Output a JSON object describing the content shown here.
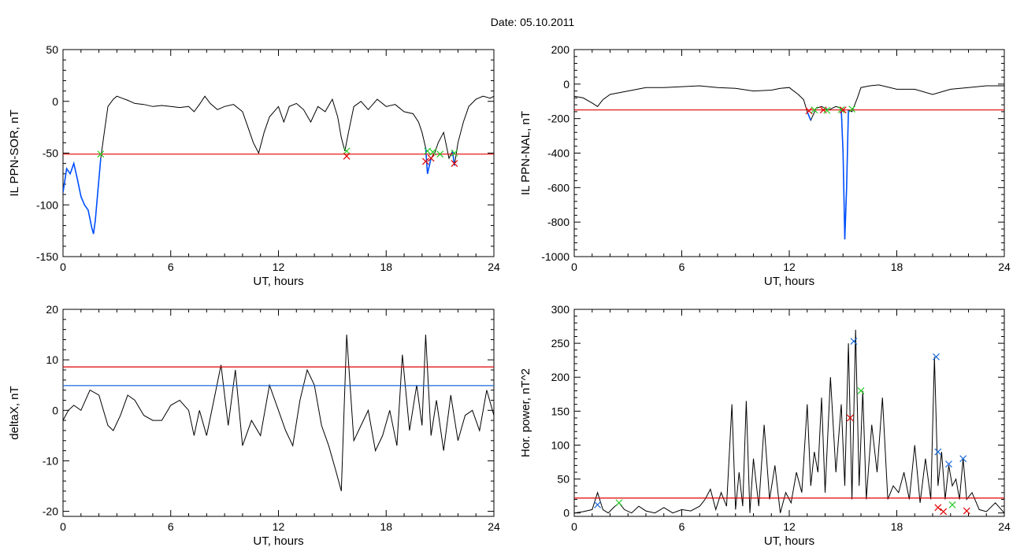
{
  "figure_title": "Date:  05.10.2011",
  "colors": {
    "line": "#000000",
    "threshold": "#e00000",
    "level": "#1a6ad9",
    "highlight": "#0050ff",
    "start_marker": "#22cc22",
    "end_marker": "#e00000",
    "peak_marker": "#1a6ad9"
  },
  "chart_data": [
    {
      "type": "line",
      "ylabel": "IL PPN-SOR, nT",
      "xlabel": "UT, hours",
      "xlim": [
        0,
        24
      ],
      "ylim": [
        -150,
        50
      ],
      "x_ticks": [
        0,
        6,
        12,
        18,
        24
      ],
      "y_ticks": [
        -150,
        -100,
        -50,
        0,
        50
      ],
      "threshold": -51,
      "series": [
        {
          "x": [
            0,
            0.2,
            0.4,
            0.6,
            0.8,
            1.0,
            1.2,
            1.4,
            1.6,
            1.7,
            1.8,
            1.9,
            2.1,
            2.3,
            2.5,
            2.8,
            3.0,
            3.3,
            3.6,
            4.0,
            4.5,
            5.0,
            5.5,
            6.0,
            6.5,
            7.0,
            7.3,
            7.6,
            7.9,
            8.2,
            8.6,
            9.0,
            9.5,
            10.0,
            10.3,
            10.6,
            10.9,
            11.2,
            11.5,
            12.0,
            12.3,
            12.6,
            13.0,
            13.4,
            13.8,
            14.2,
            14.6,
            15.0,
            15.3,
            15.5,
            15.7,
            15.9,
            16.2,
            16.6,
            17.0,
            17.5,
            18.0,
            18.5,
            19.0,
            19.5,
            19.8,
            20.0,
            20.2,
            20.3,
            20.5,
            20.7,
            20.9,
            21.2,
            21.5,
            21.7,
            21.8,
            22.0,
            22.3,
            22.6,
            23.0,
            23.4,
            23.8,
            24.0
          ],
          "y": [
            -88,
            -65,
            -70,
            -60,
            -75,
            -92,
            -100,
            -105,
            -122,
            -128,
            -115,
            -95,
            -55,
            -30,
            -5,
            2,
            5,
            3,
            1,
            -2,
            -3,
            -5,
            -4,
            -5,
            -6,
            -5,
            -10,
            -3,
            5,
            -2,
            -8,
            -5,
            -3,
            -10,
            -25,
            -40,
            -50,
            -30,
            -15,
            -5,
            -20,
            -5,
            -2,
            -8,
            -20,
            -5,
            -10,
            2,
            -15,
            -35,
            -48,
            -30,
            -5,
            0,
            -8,
            2,
            -5,
            -3,
            -10,
            -12,
            -20,
            -30,
            -45,
            -70,
            -55,
            -50,
            -40,
            -30,
            -55,
            -48,
            -62,
            -40,
            -20,
            -5,
            2,
            5,
            3,
            5
          ]
        }
      ],
      "highlight_segments": [
        [
          0,
          2.1
        ],
        [
          20.2,
          20.5
        ],
        [
          21.7,
          21.9
        ]
      ],
      "markers": [
        {
          "x": 2.1,
          "y": -51,
          "kind": "start"
        },
        {
          "x": 15.8,
          "y": -48,
          "kind": "start"
        },
        {
          "x": 15.8,
          "y": -53,
          "kind": "end"
        },
        {
          "x": 20.3,
          "y": -48,
          "kind": "start"
        },
        {
          "x": 20.6,
          "y": -49,
          "kind": "start"
        },
        {
          "x": 20.2,
          "y": -58,
          "kind": "end"
        },
        {
          "x": 20.5,
          "y": -55,
          "kind": "end"
        },
        {
          "x": 21.0,
          "y": -51,
          "kind": "start"
        },
        {
          "x": 21.8,
          "y": -50,
          "kind": "start"
        },
        {
          "x": 21.8,
          "y": -60,
          "kind": "end"
        }
      ]
    },
    {
      "type": "line",
      "ylabel": "IL PPN-NAL, nT",
      "xlabel": "UT, hours",
      "xlim": [
        0,
        24
      ],
      "ylim": [
        -1000,
        200
      ],
      "x_ticks": [
        0,
        6,
        12,
        18,
        24
      ],
      "y_ticks": [
        -1000,
        -800,
        -600,
        -400,
        -200,
        0,
        200
      ],
      "threshold": -150,
      "series": [
        {
          "x": [
            0,
            0.5,
            1.0,
            1.3,
            1.6,
            2.0,
            3.0,
            4.0,
            5.0,
            6.0,
            7.0,
            8.0,
            9.0,
            10.0,
            11.0,
            11.5,
            12.0,
            12.5,
            12.8,
            13.0,
            13.2,
            13.5,
            13.8,
            14.2,
            14.6,
            14.9,
            15.0,
            15.1,
            15.2,
            15.3,
            15.5,
            15.8,
            16.0,
            16.5,
            17.0,
            18.0,
            19.0,
            20.0,
            21.0,
            22.0,
            23.0,
            24.0
          ],
          "y": [
            -70,
            -80,
            -110,
            -130,
            -90,
            -60,
            -40,
            -20,
            -20,
            -15,
            -10,
            -20,
            -25,
            -40,
            -35,
            -25,
            -20,
            -60,
            -90,
            -160,
            -210,
            -140,
            -130,
            -150,
            -130,
            -140,
            -400,
            -900,
            -600,
            -150,
            -160,
            -80,
            -20,
            -10,
            -5,
            -30,
            -30,
            -60,
            -30,
            -20,
            -10,
            -10
          ]
        }
      ],
      "highlight_segments": [
        [
          13.0,
          13.3
        ],
        [
          14.8,
          15.4
        ]
      ],
      "markers": [
        {
          "x": 13.1,
          "y": -155,
          "kind": "end"
        },
        {
          "x": 13.4,
          "y": -150,
          "kind": "start"
        },
        {
          "x": 13.9,
          "y": -150,
          "kind": "end"
        },
        {
          "x": 14.1,
          "y": -152,
          "kind": "start"
        },
        {
          "x": 14.9,
          "y": -148,
          "kind": "start"
        },
        {
          "x": 15.5,
          "y": -145,
          "kind": "start"
        },
        {
          "x": 15.0,
          "y": -150,
          "kind": "end"
        }
      ]
    },
    {
      "type": "line",
      "ylabel": "deltaX, nT",
      "xlabel": "UT, hours",
      "xlim": [
        0,
        24
      ],
      "ylim": [
        -21,
        20
      ],
      "x_ticks": [
        0,
        6,
        12,
        18,
        24
      ],
      "y_ticks": [
        -20,
        -10,
        0,
        10,
        20
      ],
      "threshold": 8.6,
      "level": 4.9,
      "series": [
        {
          "x": [
            0,
            0.3,
            0.6,
            1.0,
            1.5,
            2.0,
            2.5,
            2.8,
            3.2,
            3.6,
            4.0,
            4.5,
            5.0,
            5.5,
            6.0,
            6.5,
            7.0,
            7.3,
            7.6,
            8.0,
            8.4,
            8.8,
            9.2,
            9.6,
            10.0,
            10.5,
            11.0,
            11.5,
            12.0,
            12.4,
            12.8,
            13.2,
            13.6,
            14.0,
            14.4,
            14.8,
            15.2,
            15.5,
            15.8,
            16.2,
            16.6,
            17.0,
            17.4,
            17.8,
            18.2,
            18.6,
            18.9,
            19.3,
            19.7,
            20.0,
            20.2,
            20.5,
            20.8,
            21.2,
            21.6,
            22.0,
            22.4,
            22.8,
            23.2,
            23.6,
            24.0
          ],
          "y": [
            -2,
            0,
            1,
            0,
            4,
            3,
            -3,
            -4,
            -1,
            3,
            2,
            -1,
            -2,
            -2,
            1,
            2,
            0,
            -5,
            0,
            -5,
            2,
            9,
            -3,
            8,
            -7,
            -2,
            -5,
            5,
            0,
            -4,
            -7,
            2,
            8,
            5,
            -3,
            -7,
            -12,
            -16,
            15,
            -6,
            -3,
            0,
            -8,
            -5,
            0,
            -7,
            11,
            -4,
            5,
            -3,
            15,
            -5,
            2,
            -8,
            3,
            -6,
            -1,
            0,
            -4,
            4,
            -1
          ]
        }
      ]
    },
    {
      "type": "line",
      "ylabel": "Hor. power, nT^2",
      "xlabel": "UT, hours",
      "xlim": [
        0,
        24
      ],
      "ylim": [
        -5,
        300
      ],
      "x_ticks": [
        0,
        6,
        12,
        18,
        24
      ],
      "y_ticks": [
        0,
        50,
        100,
        150,
        200,
        250,
        300
      ],
      "threshold": 22,
      "series": [
        {
          "x": [
            0,
            0.5,
            1.0,
            1.3,
            1.6,
            1.9,
            2.2,
            2.5,
            2.8,
            3.2,
            3.6,
            4.0,
            4.5,
            5.0,
            5.5,
            6.0,
            6.5,
            7.0,
            7.3,
            7.6,
            7.9,
            8.2,
            8.5,
            8.8,
            9.0,
            9.2,
            9.4,
            9.6,
            9.8,
            10.0,
            10.3,
            10.6,
            10.9,
            11.2,
            11.5,
            11.8,
            12.1,
            12.4,
            12.7,
            13.0,
            13.2,
            13.4,
            13.6,
            13.8,
            14.0,
            14.3,
            14.6,
            14.9,
            15.1,
            15.3,
            15.5,
            15.7,
            15.9,
            16.1,
            16.3,
            16.6,
            16.9,
            17.2,
            17.5,
            17.8,
            18.1,
            18.4,
            18.7,
            19.0,
            19.3,
            19.6,
            19.9,
            20.1,
            20.3,
            20.5,
            20.7,
            20.9,
            21.1,
            21.3,
            21.5,
            21.7,
            21.9,
            22.2,
            22.6,
            23.0,
            23.5,
            24.0
          ],
          "y": [
            0,
            2,
            5,
            30,
            5,
            0,
            8,
            15,
            5,
            0,
            10,
            3,
            0,
            8,
            0,
            5,
            3,
            10,
            20,
            35,
            5,
            30,
            10,
            160,
            5,
            60,
            10,
            165,
            0,
            80,
            10,
            130,
            20,
            70,
            0,
            30,
            15,
            60,
            30,
            160,
            40,
            90,
            60,
            170,
            30,
            200,
            60,
            160,
            40,
            250,
            20,
            270,
            40,
            180,
            20,
            130,
            60,
            170,
            20,
            40,
            30,
            60,
            20,
            100,
            15,
            80,
            20,
            230,
            40,
            90,
            20,
            70,
            40,
            50,
            20,
            80,
            20,
            30,
            5,
            2,
            15,
            0
          ]
        }
      ],
      "markers": [
        {
          "x": 1.3,
          "y": 12,
          "kind": "peak"
        },
        {
          "x": 2.5,
          "y": 15,
          "kind": "start"
        },
        {
          "x": 15.4,
          "y": 140,
          "kind": "end"
        },
        {
          "x": 15.6,
          "y": 253,
          "kind": "peak"
        },
        {
          "x": 16.0,
          "y": 180,
          "kind": "start"
        },
        {
          "x": 20.2,
          "y": 230,
          "kind": "peak"
        },
        {
          "x": 20.3,
          "y": 90,
          "kind": "peak"
        },
        {
          "x": 20.9,
          "y": 72,
          "kind": "peak"
        },
        {
          "x": 21.7,
          "y": 80,
          "kind": "peak"
        },
        {
          "x": 20.3,
          "y": 8,
          "kind": "end"
        },
        {
          "x": 20.6,
          "y": 2,
          "kind": "end"
        },
        {
          "x": 21.1,
          "y": 12,
          "kind": "start"
        },
        {
          "x": 21.9,
          "y": 3,
          "kind": "end"
        }
      ]
    }
  ]
}
